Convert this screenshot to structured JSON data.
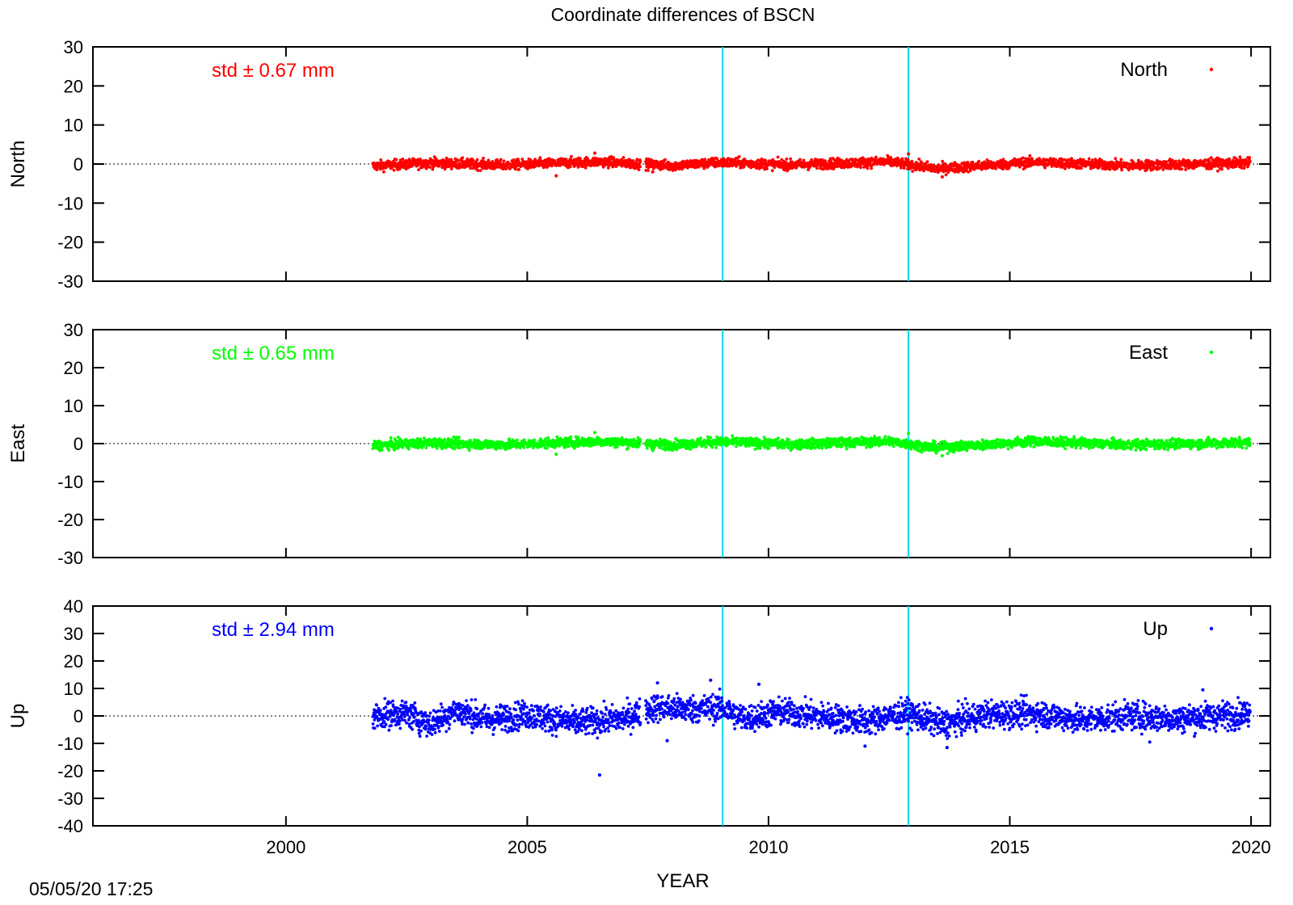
{
  "chart_data": {
    "type": "scatter",
    "title": "Coordinate differences of BSCN",
    "xlabel": "YEAR",
    "xlim": [
      1996,
      2020.4
    ],
    "x_ticks": [
      2000,
      2005,
      2010,
      2015,
      2020
    ],
    "x_tick_labels": [
      "2000",
      "2005",
      "2010",
      "2015",
      "2020"
    ],
    "data_range": [
      2001.8,
      2019.98
    ],
    "vertical_markers": [
      2009.05,
      2012.9
    ],
    "marker_color": "#00d8e8",
    "footer_timestamp": "05/05/20 17:25",
    "panels": [
      {
        "name": "North",
        "ylabel": "North",
        "color": "#ff0000",
        "ylim": [
          -30,
          30
        ],
        "y_ticks": [
          30,
          20,
          10,
          0,
          -10,
          -20,
          -30
        ],
        "y_tick_labels": [
          "30",
          "20",
          "10",
          "0",
          "-10",
          "-20",
          "-30"
        ],
        "std_text": "std ± 0.67 mm",
        "legend": "North",
        "noise_amp": 1.4,
        "anchors": [
          [
            2001.8,
            -0.5
          ],
          [
            2003.0,
            0.3
          ],
          [
            2004.5,
            -0.3
          ],
          [
            2006.5,
            0.6
          ],
          [
            2008.0,
            -0.4
          ],
          [
            2009.0,
            0.4
          ],
          [
            2010.5,
            -0.2
          ],
          [
            2012.5,
            0.6
          ],
          [
            2013.5,
            -1.2
          ],
          [
            2015.5,
            0.5
          ],
          [
            2017.5,
            -0.4
          ],
          [
            2019.98,
            0.3
          ]
        ],
        "outliers": [
          [
            2005.6,
            -3.0
          ],
          [
            2006.4,
            2.8
          ],
          [
            2007.6,
            -2.0
          ],
          [
            2012.9,
            2.6
          ],
          [
            2013.6,
            -3.3
          ]
        ]
      },
      {
        "name": "East",
        "ylabel": "East",
        "color": "#00ff00",
        "ylim": [
          -30,
          30
        ],
        "y_ticks": [
          30,
          20,
          10,
          0,
          -10,
          -20,
          -30
        ],
        "y_tick_labels": [
          "30",
          "20",
          "10",
          "0",
          "-10",
          "-20",
          "-30"
        ],
        "std_text": "std ± 0.65 mm",
        "legend": "East",
        "noise_amp": 1.4,
        "anchors": [
          [
            2001.8,
            -0.5
          ],
          [
            2003.0,
            0.2
          ],
          [
            2004.5,
            -0.3
          ],
          [
            2006.5,
            0.6
          ],
          [
            2008.0,
            -0.3
          ],
          [
            2009.0,
            0.5
          ],
          [
            2010.5,
            -0.2
          ],
          [
            2012.5,
            0.6
          ],
          [
            2013.5,
            -1.1
          ],
          [
            2015.5,
            0.6
          ],
          [
            2017.5,
            -0.3
          ],
          [
            2019.98,
            0.3
          ]
        ],
        "outliers": [
          [
            2005.6,
            -2.8
          ],
          [
            2006.4,
            2.9
          ],
          [
            2007.6,
            -1.8
          ],
          [
            2012.9,
            2.7
          ],
          [
            2013.6,
            -3.2
          ]
        ]
      },
      {
        "name": "Up",
        "ylabel": "Up",
        "color": "#0000ff",
        "ylim": [
          -40,
          40
        ],
        "y_ticks": [
          40,
          30,
          20,
          10,
          0,
          -10,
          -20,
          -30,
          -40
        ],
        "y_tick_labels": [
          "40",
          "30",
          "20",
          "10",
          "0",
          "-10",
          "-20",
          "-30",
          "-40"
        ],
        "std_text": "std ± 2.94 mm",
        "legend": "Up",
        "noise_amp": 5.5,
        "anchors": [
          [
            2001.8,
            0.0
          ],
          [
            2002.5,
            1.0
          ],
          [
            2003.0,
            -3.0
          ],
          [
            2003.5,
            2.0
          ],
          [
            2004.2,
            -1.5
          ],
          [
            2005.0,
            0.5
          ],
          [
            2006.0,
            -2.5
          ],
          [
            2007.0,
            -1.0
          ],
          [
            2007.6,
            3.0
          ],
          [
            2008.5,
            2.5
          ],
          [
            2009.0,
            3.0
          ],
          [
            2009.5,
            -1.0
          ],
          [
            2010.2,
            1.5
          ],
          [
            2011.0,
            0.0
          ],
          [
            2012.0,
            -2.0
          ],
          [
            2012.9,
            1.0
          ],
          [
            2013.6,
            -3.0
          ],
          [
            2014.5,
            0.5
          ],
          [
            2015.5,
            1.0
          ],
          [
            2016.5,
            -1.5
          ],
          [
            2017.5,
            0.0
          ],
          [
            2018.5,
            -1.0
          ],
          [
            2019.98,
            1.0
          ]
        ],
        "outliers": [
          [
            2006.5,
            -21.5
          ],
          [
            2007.7,
            12.0
          ],
          [
            2008.8,
            13.0
          ],
          [
            2009.8,
            11.5
          ],
          [
            2012.0,
            -11.0
          ],
          [
            2013.7,
            -11.5
          ],
          [
            2007.9,
            -9.0
          ],
          [
            2017.9,
            -9.5
          ],
          [
            2019.0,
            9.5
          ]
        ]
      }
    ]
  }
}
